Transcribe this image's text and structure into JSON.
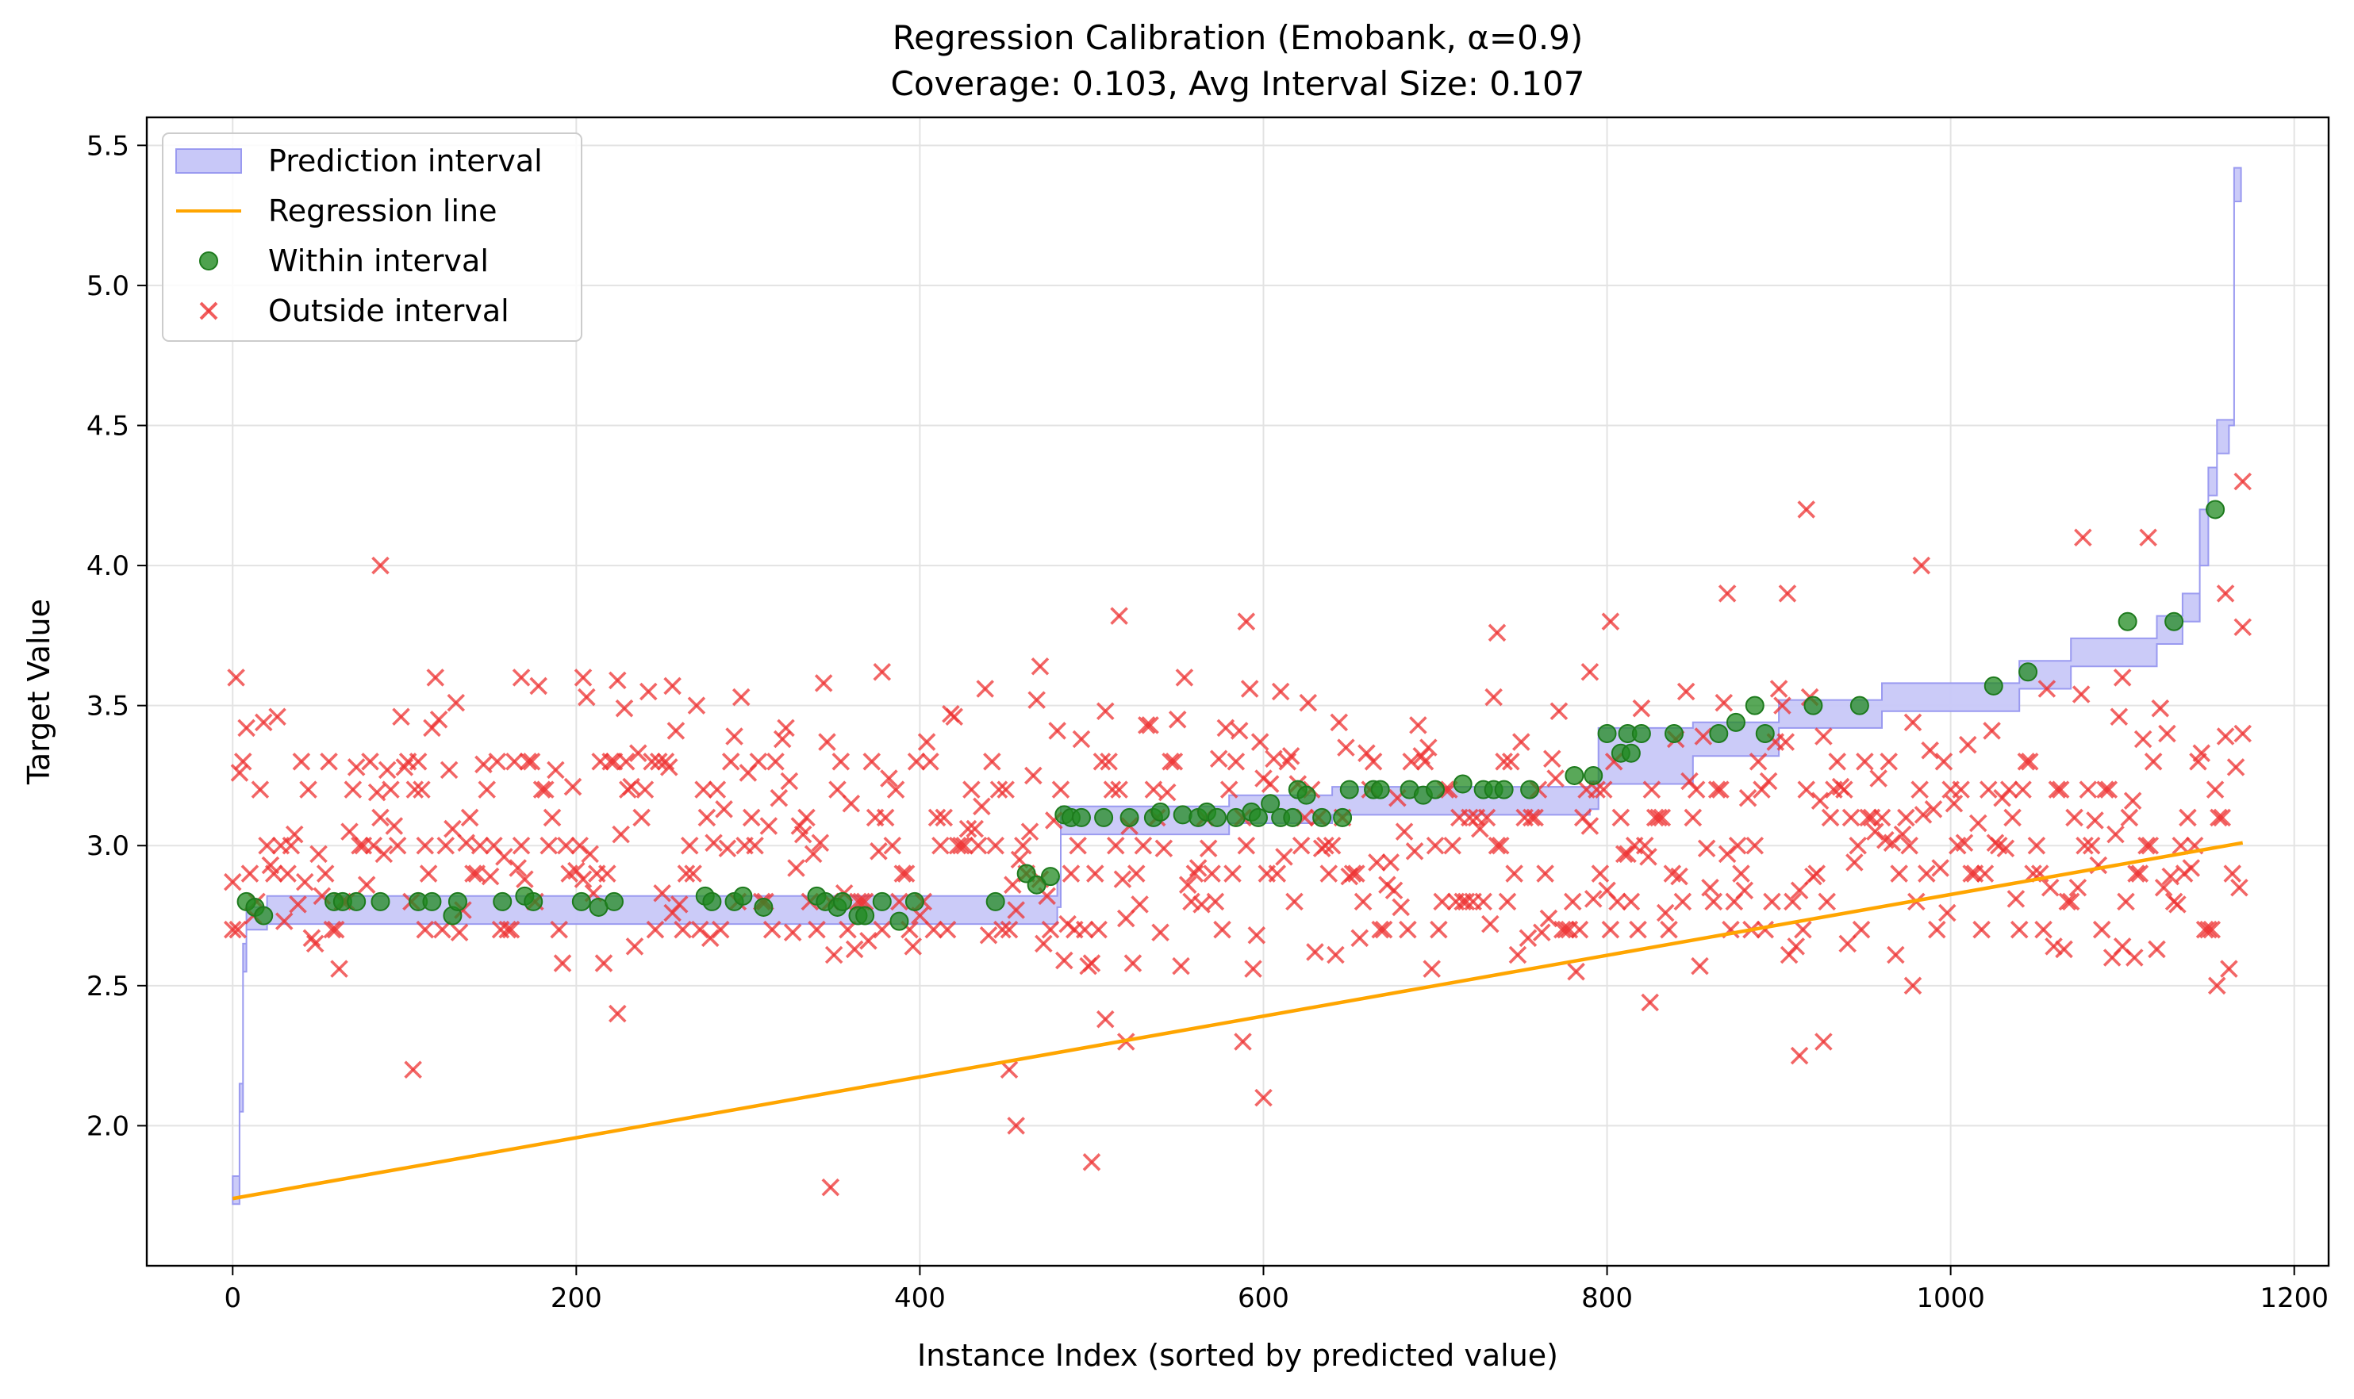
{
  "chart_data": {
    "type": "scatter",
    "title": "Regression Calibration (Emobank, α=0.9)",
    "subtitle": "Coverage: 0.103, Avg Interval Size: 0.107",
    "xlabel": "Instance Index (sorted by predicted value)",
    "ylabel": "Target Value",
    "xlim": [
      -50,
      1220
    ],
    "ylim": [
      1.5,
      5.6
    ],
    "x_ticks": [
      0,
      200,
      400,
      600,
      800,
      1000,
      1200
    ],
    "y_ticks": [
      2.0,
      2.5,
      3.0,
      3.5,
      4.0,
      4.5,
      5.0,
      5.5
    ],
    "grid": true,
    "legend_position": "upper-left",
    "n_points": 1170,
    "colors": {
      "interval_fill": "#c8c8f8",
      "interval_edge": "#9a9af0",
      "regression": "#ffa500",
      "within": "#228b22",
      "outside": "#ee3333"
    },
    "legend": [
      {
        "label": "Prediction interval",
        "kind": "interval"
      },
      {
        "label": "Regression line",
        "kind": "line"
      },
      {
        "label": "Within interval",
        "kind": "within"
      },
      {
        "label": "Outside interval",
        "kind": "outside"
      }
    ],
    "regression_line": {
      "x": [
        0,
        1170
      ],
      "y": [
        1.74,
        3.01
      ]
    },
    "prediction_interval": [
      {
        "x": 0,
        "lower": 1.72,
        "upper": 1.82
      },
      {
        "x": 4,
        "lower": 2.05,
        "upper": 2.15
      },
      {
        "x": 6,
        "lower": 2.55,
        "upper": 2.65
      },
      {
        "x": 8,
        "lower": 2.7,
        "upper": 2.78
      },
      {
        "x": 20,
        "lower": 2.72,
        "upper": 2.82
      },
      {
        "x": 480,
        "lower": 2.78,
        "upper": 2.88
      },
      {
        "x": 482,
        "lower": 3.04,
        "upper": 3.14
      },
      {
        "x": 580,
        "lower": 3.08,
        "upper": 3.18
      },
      {
        "x": 640,
        "lower": 3.11,
        "upper": 3.21
      },
      {
        "x": 790,
        "lower": 3.13,
        "upper": 3.23
      },
      {
        "x": 795,
        "lower": 3.22,
        "upper": 3.42
      },
      {
        "x": 850,
        "lower": 3.32,
        "upper": 3.44
      },
      {
        "x": 900,
        "lower": 3.42,
        "upper": 3.52
      },
      {
        "x": 960,
        "lower": 3.48,
        "upper": 3.58
      },
      {
        "x": 1040,
        "lower": 3.56,
        "upper": 3.66
      },
      {
        "x": 1070,
        "lower": 3.64,
        "upper": 3.74
      },
      {
        "x": 1120,
        "lower": 3.72,
        "upper": 3.82
      },
      {
        "x": 1135,
        "lower": 3.8,
        "upper": 3.9
      },
      {
        "x": 1145,
        "lower": 4.0,
        "upper": 4.2
      },
      {
        "x": 1150,
        "lower": 4.25,
        "upper": 4.35
      },
      {
        "x": 1155,
        "lower": 4.4,
        "upper": 4.52
      },
      {
        "x": 1162,
        "lower": 4.5,
        "upper": 4.52
      },
      {
        "x": 1165,
        "lower": 5.3,
        "upper": 5.42
      }
    ],
    "within_points": [
      {
        "x": 8,
        "y": 2.8
      },
      {
        "x": 13,
        "y": 2.78
      },
      {
        "x": 18,
        "y": 2.75
      },
      {
        "x": 59,
        "y": 2.8
      },
      {
        "x": 64,
        "y": 2.8
      },
      {
        "x": 72,
        "y": 2.8
      },
      {
        "x": 86,
        "y": 2.8
      },
      {
        "x": 108,
        "y": 2.8
      },
      {
        "x": 116,
        "y": 2.8
      },
      {
        "x": 128,
        "y": 2.75
      },
      {
        "x": 131,
        "y": 2.8
      },
      {
        "x": 157,
        "y": 2.8
      },
      {
        "x": 170,
        "y": 2.82
      },
      {
        "x": 175,
        "y": 2.8
      },
      {
        "x": 203,
        "y": 2.8
      },
      {
        "x": 213,
        "y": 2.78
      },
      {
        "x": 222,
        "y": 2.8
      },
      {
        "x": 275,
        "y": 2.82
      },
      {
        "x": 279,
        "y": 2.8
      },
      {
        "x": 292,
        "y": 2.8
      },
      {
        "x": 297,
        "y": 2.82
      },
      {
        "x": 309,
        "y": 2.78
      },
      {
        "x": 340,
        "y": 2.82
      },
      {
        "x": 345,
        "y": 2.8
      },
      {
        "x": 352,
        "y": 2.78
      },
      {
        "x": 355,
        "y": 2.8
      },
      {
        "x": 364,
        "y": 2.75
      },
      {
        "x": 368,
        "y": 2.75
      },
      {
        "x": 378,
        "y": 2.8
      },
      {
        "x": 388,
        "y": 2.73
      },
      {
        "x": 397,
        "y": 2.8
      },
      {
        "x": 444,
        "y": 2.8
      },
      {
        "x": 462,
        "y": 2.9
      },
      {
        "x": 468,
        "y": 2.86
      },
      {
        "x": 476,
        "y": 2.89
      },
      {
        "x": 484,
        "y": 3.11
      },
      {
        "x": 488,
        "y": 3.1
      },
      {
        "x": 494,
        "y": 3.1
      },
      {
        "x": 507,
        "y": 3.1
      },
      {
        "x": 522,
        "y": 3.1
      },
      {
        "x": 536,
        "y": 3.1
      },
      {
        "x": 540,
        "y": 3.12
      },
      {
        "x": 553,
        "y": 3.11
      },
      {
        "x": 562,
        "y": 3.1
      },
      {
        "x": 567,
        "y": 3.12
      },
      {
        "x": 573,
        "y": 3.1
      },
      {
        "x": 584,
        "y": 3.1
      },
      {
        "x": 593,
        "y": 3.12
      },
      {
        "x": 597,
        "y": 3.1
      },
      {
        "x": 604,
        "y": 3.15
      },
      {
        "x": 610,
        "y": 3.1
      },
      {
        "x": 617,
        "y": 3.1
      },
      {
        "x": 620,
        "y": 3.2
      },
      {
        "x": 625,
        "y": 3.18
      },
      {
        "x": 634,
        "y": 3.1
      },
      {
        "x": 646,
        "y": 3.1
      },
      {
        "x": 650,
        "y": 3.2
      },
      {
        "x": 664,
        "y": 3.2
      },
      {
        "x": 668,
        "y": 3.2
      },
      {
        "x": 685,
        "y": 3.2
      },
      {
        "x": 693,
        "y": 3.18
      },
      {
        "x": 700,
        "y": 3.2
      },
      {
        "x": 716,
        "y": 3.22
      },
      {
        "x": 728,
        "y": 3.2
      },
      {
        "x": 734,
        "y": 3.2
      },
      {
        "x": 740,
        "y": 3.2
      },
      {
        "x": 755,
        "y": 3.2
      },
      {
        "x": 781,
        "y": 3.25
      },
      {
        "x": 792,
        "y": 3.25
      },
      {
        "x": 800,
        "y": 3.4
      },
      {
        "x": 808,
        "y": 3.33
      },
      {
        "x": 812,
        "y": 3.4
      },
      {
        "x": 814,
        "y": 3.33
      },
      {
        "x": 820,
        "y": 3.4
      },
      {
        "x": 839,
        "y": 3.4
      },
      {
        "x": 865,
        "y": 3.4
      },
      {
        "x": 875,
        "y": 3.44
      },
      {
        "x": 886,
        "y": 3.5
      },
      {
        "x": 892,
        "y": 3.4
      },
      {
        "x": 920,
        "y": 3.5
      },
      {
        "x": 947,
        "y": 3.5
      },
      {
        "x": 1025,
        "y": 3.57
      },
      {
        "x": 1045,
        "y": 3.62
      },
      {
        "x": 1103,
        "y": 3.8
      },
      {
        "x": 1130,
        "y": 3.8
      },
      {
        "x": 1154,
        "y": 4.2
      }
    ],
    "outside_points": [
      {
        "x": 0,
        "y": 2.7
      },
      {
        "x": 3,
        "y": 2.7
      },
      {
        "x": 86,
        "y": 4.0
      },
      {
        "x": 105,
        "y": 2.2
      },
      {
        "x": 112,
        "y": 2.7
      },
      {
        "x": 168,
        "y": 3.6
      },
      {
        "x": 204,
        "y": 3.6
      },
      {
        "x": 224,
        "y": 2.4
      },
      {
        "x": 229,
        "y": 3.3
      },
      {
        "x": 256,
        "y": 3.57
      },
      {
        "x": 348,
        "y": 1.78
      },
      {
        "x": 378,
        "y": 3.62
      },
      {
        "x": 452,
        "y": 2.2
      },
      {
        "x": 456,
        "y": 2.0
      },
      {
        "x": 470,
        "y": 3.64
      },
      {
        "x": 500,
        "y": 1.87
      },
      {
        "x": 508,
        "y": 2.38
      },
      {
        "x": 516,
        "y": 3.82
      },
      {
        "x": 520,
        "y": 2.3
      },
      {
        "x": 588,
        "y": 2.3
      },
      {
        "x": 590,
        "y": 3.8
      },
      {
        "x": 600,
        "y": 2.1
      },
      {
        "x": 736,
        "y": 3.76
      },
      {
        "x": 790,
        "y": 3.62
      },
      {
        "x": 802,
        "y": 3.8
      },
      {
        "x": 825,
        "y": 2.44
      },
      {
        "x": 870,
        "y": 3.9
      },
      {
        "x": 905,
        "y": 3.9
      },
      {
        "x": 912,
        "y": 2.25
      },
      {
        "x": 916,
        "y": 4.2
      },
      {
        "x": 926,
        "y": 2.3
      },
      {
        "x": 983,
        "y": 4.0
      },
      {
        "x": 978,
        "y": 2.5
      },
      {
        "x": 1077,
        "y": 4.1
      },
      {
        "x": 1100,
        "y": 3.6
      },
      {
        "x": 1107,
        "y": 2.6
      },
      {
        "x": 1115,
        "y": 4.1
      },
      {
        "x": 1155,
        "y": 2.5
      },
      {
        "x": 1160,
        "y": 3.9
      },
      {
        "x": 1170,
        "y": 4.3
      },
      {
        "x": 1170,
        "y": 3.78
      },
      {
        "x": 1170,
        "y": 3.4
      }
    ],
    "outside_points_note_levels": [
      2.7,
      2.8,
      2.9,
      3.0,
      3.1,
      3.2,
      3.3
    ]
  }
}
